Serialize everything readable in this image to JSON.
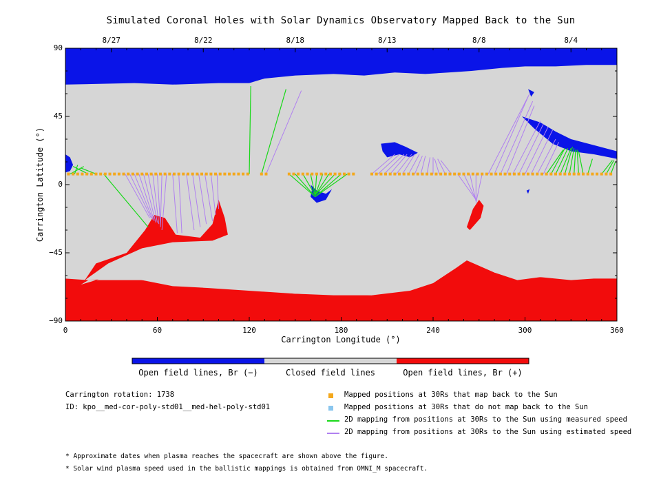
{
  "title": "Simulated Coronal Holes with Solar Dynamics Observatory Mapped Back to the Sun",
  "colors": {
    "open_negative": "#0a14e8",
    "closed": "#d6d6d6",
    "open_positive": "#f20c0c",
    "mapped_dot": "#f4a81c",
    "unmapped_dot": "#8ac6ee",
    "measured_line": "#18d818",
    "estimated_line": "#b080f0"
  },
  "chart_data": {
    "type": "map",
    "xlabel": "Carrington Longitude (°)",
    "ylabel": "Carrington Latitude (°)",
    "xlim": [
      0,
      360
    ],
    "ylim": [
      -90,
      90
    ],
    "x_ticks": [
      0,
      60,
      120,
      180,
      240,
      300,
      360
    ],
    "y_ticks": [
      90,
      45,
      0,
      -45,
      -90
    ],
    "y_tick_labels": [
      "90",
      "45",
      "0",
      "−45",
      "−90"
    ],
    "top_dates": [
      {
        "label": "8/27",
        "lon": 30
      },
      {
        "label": "8/22",
        "lon": 90
      },
      {
        "label": "8/18",
        "lon": 150
      },
      {
        "label": "8/13",
        "lon": 210
      },
      {
        "label": "8/8",
        "lon": 270
      },
      {
        "label": "8/4",
        "lon": 330
      }
    ],
    "north_polar_hole_boundary": [
      [
        0,
        66
      ],
      [
        45,
        67
      ],
      [
        70,
        66
      ],
      [
        100,
        67
      ],
      [
        120,
        67
      ],
      [
        130,
        70
      ],
      [
        150,
        72
      ],
      [
        175,
        73
      ],
      [
        195,
        72
      ],
      [
        215,
        74
      ],
      [
        235,
        73
      ],
      [
        250,
        74
      ],
      [
        265,
        75
      ],
      [
        285,
        77
      ],
      [
        300,
        78
      ],
      [
        320,
        78
      ],
      [
        340,
        79
      ],
      [
        360,
        79
      ]
    ],
    "south_polar_hole_boundary": [
      [
        0,
        -62
      ],
      [
        15,
        -63
      ],
      [
        30,
        -62
      ],
      [
        50,
        -63
      ],
      [
        70,
        -67
      ],
      [
        90,
        -68
      ],
      [
        110,
        -68
      ],
      [
        130,
        -70
      ],
      [
        150,
        -72
      ],
      [
        175,
        -73
      ],
      [
        200,
        -73
      ],
      [
        225,
        -70
      ],
      [
        240,
        -65
      ],
      [
        255,
        -55
      ],
      [
        262,
        -50
      ],
      [
        270,
        -51
      ],
      [
        280,
        -58
      ],
      [
        295,
        -63
      ],
      [
        310,
        -61
      ],
      [
        330,
        -63
      ],
      [
        345,
        -62
      ],
      [
        360,
        -62
      ]
    ],
    "mapped_positions_lat": 7,
    "mapped_positions_lon": [
      2,
      5,
      8,
      11,
      14,
      17,
      20,
      23,
      26,
      29,
      32,
      35,
      38,
      41,
      44,
      47,
      50,
      53,
      56,
      59,
      62,
      65,
      68,
      71,
      74,
      77,
      80,
      83,
      86,
      89,
      92,
      95,
      98,
      101,
      104,
      107,
      110,
      113,
      116,
      119,
      128,
      131,
      146,
      149,
      152,
      155,
      158,
      161,
      164,
      167,
      170,
      173,
      176,
      179,
      182,
      185,
      188,
      200,
      203,
      206,
      209,
      212,
      215,
      218,
      221,
      224,
      227,
      230,
      233,
      236,
      239,
      242,
      245,
      248,
      251,
      254,
      257,
      260,
      263,
      266,
      269,
      272,
      275,
      278,
      281,
      284,
      287,
      290,
      293,
      296,
      299,
      302,
      305,
      308,
      311,
      314,
      317,
      320,
      323,
      326,
      329,
      332,
      335,
      338,
      341,
      344,
      347,
      350,
      353,
      356
    ],
    "measured_speed_mappings": [
      [
        [
          3,
          7
        ],
        [
          12,
          12
        ]
      ],
      [
        [
          6,
          7
        ],
        [
          8,
          13
        ]
      ],
      [
        [
          15,
          7
        ],
        [
          5,
          12
        ]
      ],
      [
        [
          20,
          7
        ],
        [
          10,
          11
        ]
      ],
      [
        [
          25,
          7
        ],
        [
          54,
          -28
        ]
      ],
      [
        [
          120,
          7
        ],
        [
          121,
          65
        ]
      ],
      [
        [
          128,
          7
        ],
        [
          144,
          63
        ]
      ],
      [
        [
          146,
          7
        ],
        [
          163,
          -8
        ]
      ],
      [
        [
          150,
          7
        ],
        [
          163,
          -8
        ]
      ],
      [
        [
          155,
          7
        ],
        [
          163,
          -7
        ]
      ],
      [
        [
          160,
          7
        ],
        [
          163,
          -7
        ]
      ],
      [
        [
          164,
          7
        ],
        [
          163,
          -7
        ]
      ],
      [
        [
          168,
          7
        ],
        [
          163,
          -7
        ]
      ],
      [
        [
          172,
          7
        ],
        [
          163,
          -7
        ]
      ],
      [
        [
          176,
          7
        ],
        [
          163,
          -7
        ]
      ],
      [
        [
          180,
          7
        ],
        [
          163,
          -8
        ]
      ],
      [
        [
          184,
          7
        ],
        [
          163,
          -8
        ]
      ],
      [
        [
          314,
          7
        ],
        [
          325,
          23
        ]
      ],
      [
        [
          317,
          7
        ],
        [
          326,
          24
        ]
      ],
      [
        [
          320,
          7
        ],
        [
          328,
          24
        ]
      ],
      [
        [
          323,
          7
        ],
        [
          330,
          24
        ]
      ],
      [
        [
          326,
          7
        ],
        [
          331,
          25
        ]
      ],
      [
        [
          329,
          7
        ],
        [
          332,
          24
        ]
      ],
      [
        [
          332,
          7
        ],
        [
          333,
          23
        ]
      ],
      [
        [
          335,
          7
        ],
        [
          334,
          23
        ]
      ],
      [
        [
          338,
          7
        ],
        [
          335,
          22
        ]
      ],
      [
        [
          341,
          7
        ],
        [
          344,
          17
        ]
      ],
      [
        [
          350,
          7
        ],
        [
          357,
          16
        ]
      ],
      [
        [
          353,
          7
        ],
        [
          358,
          16
        ]
      ],
      [
        [
          356,
          7
        ],
        [
          359,
          15
        ]
      ]
    ],
    "estimated_speed_mappings": [
      [
        [
          39,
          7
        ],
        [
          55,
          -22
        ]
      ],
      [
        [
          42,
          7
        ],
        [
          56,
          -22
        ]
      ],
      [
        [
          45,
          7
        ],
        [
          57,
          -23
        ]
      ],
      [
        [
          48,
          7
        ],
        [
          58,
          -24
        ]
      ],
      [
        [
          51,
          7
        ],
        [
          59,
          -25
        ]
      ],
      [
        [
          54,
          7
        ],
        [
          60,
          -25
        ]
      ],
      [
        [
          57,
          7
        ],
        [
          61,
          -26
        ]
      ],
      [
        [
          60,
          7
        ],
        [
          62,
          -27
        ]
      ],
      [
        [
          63,
          7
        ],
        [
          62,
          -28
        ]
      ],
      [
        [
          66,
          7
        ],
        [
          63,
          -30
        ]
      ],
      [
        [
          70,
          7
        ],
        [
          73,
          -32
        ]
      ],
      [
        [
          74,
          7
        ],
        [
          76,
          -32
        ]
      ],
      [
        [
          79,
          7
        ],
        [
          84,
          -30
        ]
      ],
      [
        [
          83,
          7
        ],
        [
          88,
          -28
        ]
      ],
      [
        [
          87,
          7
        ],
        [
          92,
          -26
        ]
      ],
      [
        [
          91,
          7
        ],
        [
          96,
          -24
        ]
      ],
      [
        [
          95,
          7
        ],
        [
          98,
          -20
        ]
      ],
      [
        [
          99,
          7
        ],
        [
          100,
          -16
        ]
      ],
      [
        [
          131,
          7
        ],
        [
          154,
          62
        ]
      ],
      [
        [
          200,
          7
        ],
        [
          215,
          20
        ]
      ],
      [
        [
          204,
          7
        ],
        [
          218,
          20
        ]
      ],
      [
        [
          208,
          7
        ],
        [
          221,
          20
        ]
      ],
      [
        [
          212,
          7
        ],
        [
          223,
          20
        ]
      ],
      [
        [
          216,
          7
        ],
        [
          226,
          20
        ]
      ],
      [
        [
          220,
          7
        ],
        [
          228,
          20
        ]
      ],
      [
        [
          224,
          7
        ],
        [
          231,
          20
        ]
      ],
      [
        [
          228,
          7
        ],
        [
          233,
          19
        ]
      ],
      [
        [
          232,
          7
        ],
        [
          235,
          19
        ]
      ],
      [
        [
          236,
          7
        ],
        [
          238,
          18
        ]
      ],
      [
        [
          240,
          7
        ],
        [
          240,
          18
        ]
      ],
      [
        [
          244,
          7
        ],
        [
          241,
          17
        ]
      ],
      [
        [
          248,
          7
        ],
        [
          243,
          17
        ]
      ],
      [
        [
          252,
          7
        ],
        [
          245,
          16
        ]
      ],
      [
        [
          256,
          7
        ],
        [
          268,
          -10
        ]
      ],
      [
        [
          260,
          7
        ],
        [
          268,
          -10
        ]
      ],
      [
        [
          264,
          7
        ],
        [
          268,
          -11
        ]
      ],
      [
        [
          268,
          7
        ],
        [
          268,
          -11
        ]
      ],
      [
        [
          272,
          7
        ],
        [
          268,
          -12
        ]
      ],
      [
        [
          276,
          7
        ],
        [
          303,
          60
        ]
      ],
      [
        [
          280,
          7
        ],
        [
          302,
          58
        ]
      ],
      [
        [
          284,
          7
        ],
        [
          305,
          55
        ]
      ],
      [
        [
          288,
          7
        ],
        [
          306,
          52
        ]
      ],
      [
        [
          292,
          7
        ],
        [
          310,
          42
        ]
      ],
      [
        [
          296,
          7
        ],
        [
          312,
          40
        ]
      ],
      [
        [
          300,
          7
        ],
        [
          315,
          38
        ]
      ],
      [
        [
          304,
          7
        ],
        [
          318,
          36
        ]
      ],
      [
        [
          308,
          7
        ],
        [
          320,
          30
        ]
      ],
      [
        [
          312,
          7
        ],
        [
          322,
          28
        ]
      ]
    ]
  },
  "colorbar": {
    "labels": [
      "Open field lines, Br (−)",
      "Closed field lines",
      "Open field lines, Br (+)"
    ]
  },
  "info": {
    "rotation": "Carrington rotation: 1738",
    "id": "ID: kpo__med-cor-poly-std01__med-hel-poly-std01"
  },
  "legend": [
    {
      "symbol": "square",
      "color": "#f4a81c",
      "label": "Mapped positions at 30Rs that map back to the Sun"
    },
    {
      "symbol": "square",
      "color": "#8ac6ee",
      "label": "Mapped positions at 30Rs that do not map back to the Sun"
    },
    {
      "symbol": "line",
      "color": "#18d818",
      "label": "2D mapping from positions at 30Rs to the Sun using measured speed"
    },
    {
      "symbol": "line",
      "color": "#b080f0",
      "label": "2D mapping from positions at 30Rs to the Sun using estimated speed"
    }
  ],
  "notes": [
    "* Approximate dates when plasma reaches the spacecraft are shown above the figure.",
    "* Solar wind plasma speed used in the ballistic mappings is obtained from OMNI_M spacecraft."
  ]
}
